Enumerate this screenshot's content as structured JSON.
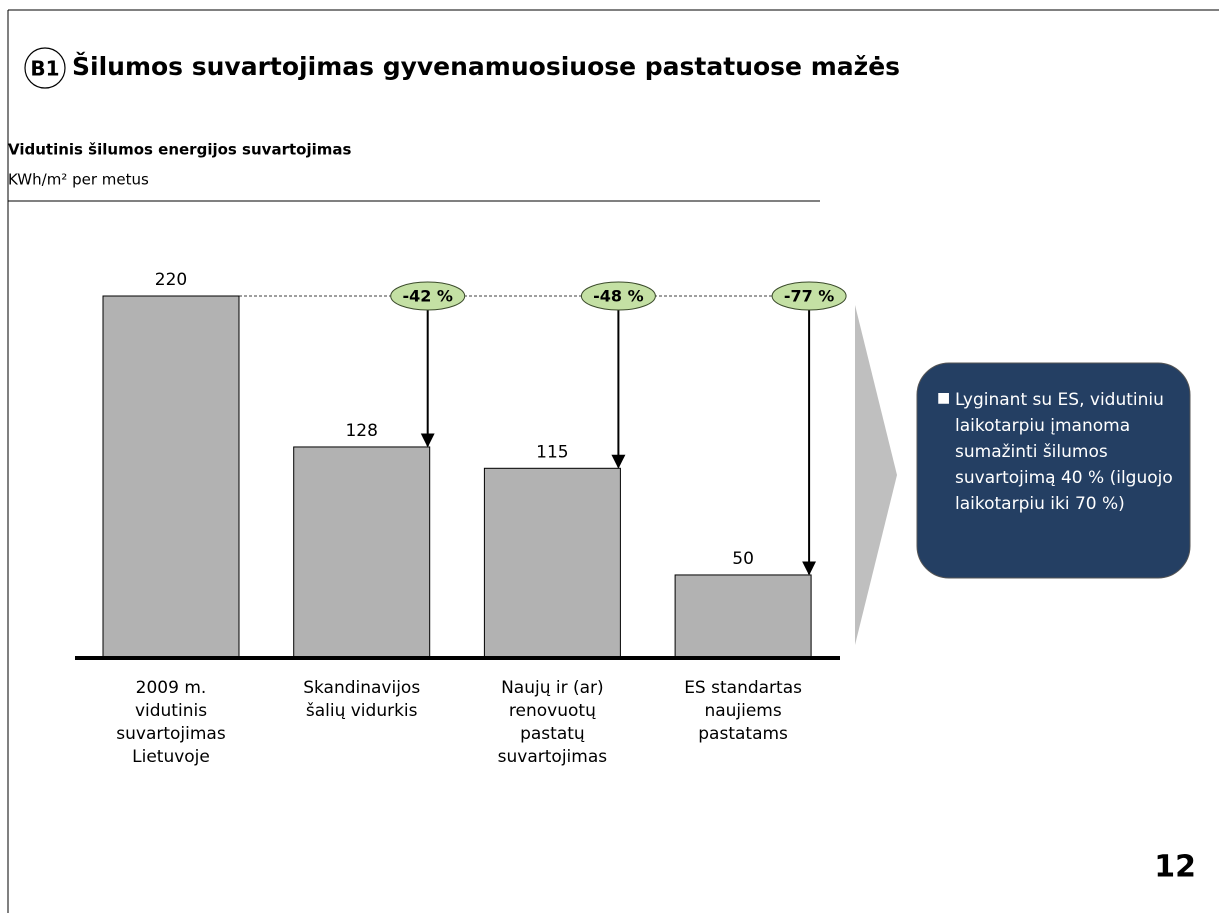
{
  "badge": "B1",
  "page_number": "12",
  "chart_data": {
    "type": "bar",
    "title": "Šilumos suvartojimas gyvenamuosiuose pastatuose mažės",
    "subtitle": "Vidutinis šilumos energijos suvartojimas",
    "unit": "KWh/m² per metus",
    "categories": [
      "2009 m.\nvidutinis\nsuvartojimas\nLietuvoje",
      "Skandinavijos\nšalių vidurkis",
      "Naujų ir (ar)\nrenovuotų\npastatų\nsuvartojimas",
      "ES standartas\nnaujiems\npastatams"
    ],
    "values": [
      220,
      128,
      115,
      50
    ],
    "color": "#b2b2b2",
    "annotations": [
      "-42 %",
      "-48 %",
      "-77 %"
    ],
    "callout": "Lyginant su ES, vidutiniu laikotarpiu įmanoma sumažinti šilumos suvartojimą 40 % (ilguojo laikotarpiu iki 70 %)"
  }
}
